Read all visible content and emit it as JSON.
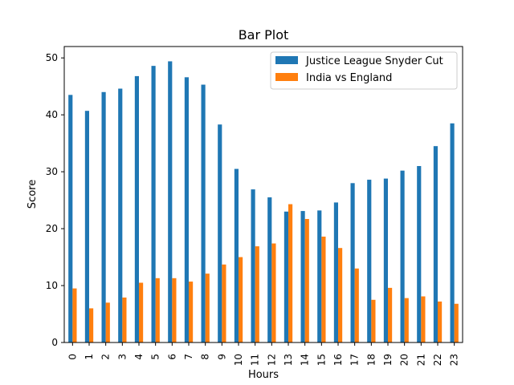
{
  "chart_data": {
    "type": "bar",
    "title": "Bar Plot",
    "xlabel": "Hours",
    "ylabel": "Score",
    "categories": [
      "0",
      "1",
      "2",
      "3",
      "4",
      "5",
      "6",
      "7",
      "8",
      "9",
      "10",
      "11",
      "12",
      "13",
      "14",
      "15",
      "16",
      "17",
      "18",
      "19",
      "20",
      "21",
      "22",
      "23"
    ],
    "ylim": [
      0,
      52
    ],
    "yticks": [
      0,
      10,
      20,
      30,
      40,
      50
    ],
    "grid": false,
    "legend_position": "top-right",
    "series": [
      {
        "name": "Justice League Snyder Cut",
        "color": "#1f77b4",
        "values": [
          43.5,
          40.7,
          44.0,
          44.6,
          46.8,
          48.6,
          49.4,
          46.6,
          45.3,
          38.3,
          30.5,
          26.9,
          25.5,
          23.0,
          23.1,
          23.2,
          24.6,
          28.0,
          28.6,
          28.8,
          30.2,
          31.0,
          34.5,
          38.5
        ]
      },
      {
        "name": "India vs England",
        "color": "#ff7f0e",
        "values": [
          9.5,
          6.0,
          7.0,
          7.9,
          10.5,
          11.3,
          11.3,
          10.7,
          12.1,
          13.7,
          15.0,
          16.9,
          17.4,
          24.3,
          21.7,
          18.6,
          16.6,
          13.0,
          7.5,
          9.6,
          7.8,
          8.1,
          7.2,
          6.8
        ]
      }
    ]
  }
}
